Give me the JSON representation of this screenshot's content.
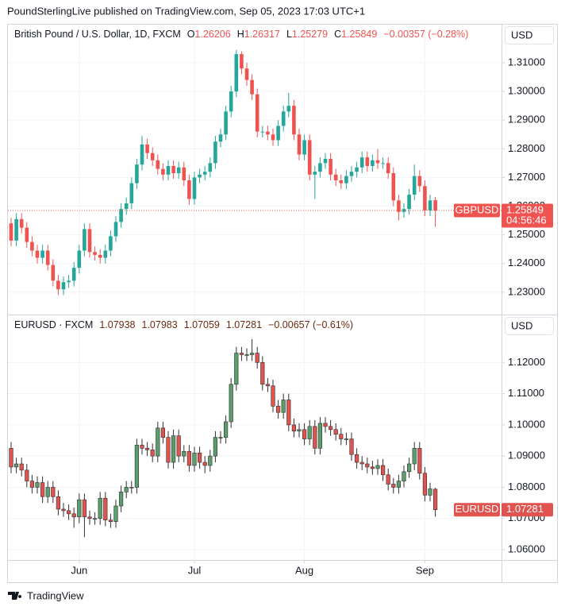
{
  "header": {
    "text": "PoundSterlingLive published on TradingView.com, Sep 05, 2023 17:03 UTC+1"
  },
  "footer": {
    "logo_text": "TradingView"
  },
  "chart_data": [
    {
      "type": "candlestick",
      "title": "British Pound / U.S. Dollar, 1D, FXCM",
      "ohlc_labels": [
        "O",
        "H",
        "L",
        "C"
      ],
      "change_label": "−0.00357 (−0.28%)",
      "currency": "USD",
      "symbol": "GBPUSD",
      "countdown": "04:56:46",
      "up_color": "#26a69a",
      "down_color": "#ef5350",
      "legend_color": "#ef5350",
      "last_price_line": true,
      "grid": true,
      "ylim": [
        1.2222,
        1.3233
      ],
      "yticks": [
        {
          "value": 1.31,
          "label": "1.31000"
        },
        {
          "value": 1.3,
          "label": "1.30000"
        },
        {
          "value": 1.29,
          "label": "1.29000"
        },
        {
          "value": 1.28,
          "label": "1.28000"
        },
        {
          "value": 1.27,
          "label": "1.27000"
        },
        {
          "value": 1.26,
          "label": "1.26000"
        },
        {
          "value": 1.25,
          "label": "1.25000"
        },
        {
          "value": 1.24,
          "label": "1.24000"
        },
        {
          "value": 1.23,
          "label": "1.23000"
        }
      ],
      "open": [
        1.254,
        1.248,
        1.2555,
        1.2525,
        1.2475,
        1.2445,
        1.242,
        1.2445,
        1.2395,
        1.234,
        1.231,
        1.2335,
        1.234,
        1.2385,
        1.2445,
        1.252,
        1.244,
        1.243,
        1.242,
        1.2445,
        1.2495,
        1.2545,
        1.259,
        1.261,
        1.268,
        1.2745,
        1.2815,
        1.2785,
        1.276,
        1.273,
        1.271,
        1.274,
        1.2715,
        1.2735,
        1.269,
        1.2625,
        1.27,
        1.271,
        1.272,
        1.275,
        1.2825,
        1.285,
        1.293,
        1.3,
        1.313,
        1.308,
        1.304,
        1.299,
        1.286,
        1.286,
        1.285,
        1.283,
        1.288,
        1.293,
        1.295,
        1.285,
        1.278,
        1.283,
        1.271,
        1.272,
        1.275,
        1.2765,
        1.271,
        1.269,
        1.268,
        1.2705,
        1.272,
        1.2735,
        1.277,
        1.274,
        1.276,
        1.275,
        1.275,
        1.2715,
        1.262,
        1.258,
        1.259,
        1.264,
        1.2705,
        1.267,
        1.2585,
        1.26206
      ],
      "high": [
        1.256,
        1.2575,
        1.2575,
        1.2545,
        1.2495,
        1.2465,
        1.2465,
        1.2465,
        1.2415,
        1.236,
        1.2355,
        1.236,
        1.2405,
        1.2465,
        1.254,
        1.254,
        1.246,
        1.245,
        1.2465,
        1.2515,
        1.2565,
        1.261,
        1.263,
        1.27,
        1.2765,
        1.2845,
        1.2835,
        1.2805,
        1.278,
        1.275,
        1.276,
        1.276,
        1.2755,
        1.2755,
        1.271,
        1.272,
        1.273,
        1.274,
        1.277,
        1.2845,
        1.287,
        1.295,
        1.302,
        1.3145,
        1.314,
        1.31,
        1.306,
        1.301,
        1.288,
        1.288,
        1.287,
        1.29,
        1.295,
        1.2995,
        1.297,
        1.287,
        1.285,
        1.285,
        1.274,
        1.277,
        1.2785,
        1.2785,
        1.273,
        1.271,
        1.2725,
        1.274,
        1.2755,
        1.279,
        1.279,
        1.278,
        1.28,
        1.277,
        1.277,
        1.2735,
        1.264,
        1.261,
        1.266,
        1.2745,
        1.2725,
        1.269,
        1.264,
        1.26317
      ],
      "low": [
        1.246,
        1.246,
        1.2505,
        1.2455,
        1.2425,
        1.24,
        1.24,
        1.2375,
        1.232,
        1.229,
        1.229,
        1.2315,
        1.232,
        1.2365,
        1.2425,
        1.242,
        1.241,
        1.24,
        1.24,
        1.2425,
        1.2475,
        1.2525,
        1.257,
        1.259,
        1.266,
        1.2725,
        1.2765,
        1.274,
        1.271,
        1.269,
        1.269,
        1.2695,
        1.2695,
        1.267,
        1.2605,
        1.2605,
        1.268,
        1.269,
        1.27,
        1.273,
        1.2805,
        1.283,
        1.291,
        1.298,
        1.306,
        1.302,
        1.297,
        1.284,
        1.284,
        1.283,
        1.281,
        1.281,
        1.286,
        1.291,
        1.283,
        1.276,
        1.276,
        1.269,
        1.2625,
        1.27,
        1.273,
        1.269,
        1.267,
        1.266,
        1.266,
        1.2685,
        1.27,
        1.2715,
        1.272,
        1.272,
        1.273,
        1.273,
        1.2695,
        1.26,
        1.255,
        1.256,
        1.257,
        1.262,
        1.265,
        1.2565,
        1.2565,
        1.25279
      ],
      "close": [
        1.248,
        1.2555,
        1.2525,
        1.2475,
        1.2445,
        1.242,
        1.2445,
        1.2395,
        1.234,
        1.231,
        1.2335,
        1.234,
        1.2385,
        1.2445,
        1.252,
        1.244,
        1.243,
        1.242,
        1.2445,
        1.2495,
        1.2545,
        1.259,
        1.261,
        1.268,
        1.2745,
        1.2815,
        1.2785,
        1.276,
        1.273,
        1.271,
        1.274,
        1.2715,
        1.2735,
        1.269,
        1.2625,
        1.27,
        1.271,
        1.272,
        1.275,
        1.2825,
        1.285,
        1.293,
        1.3,
        1.313,
        1.308,
        1.304,
        1.299,
        1.286,
        1.286,
        1.285,
        1.283,
        1.288,
        1.293,
        1.295,
        1.285,
        1.278,
        1.283,
        1.271,
        1.272,
        1.275,
        1.2765,
        1.271,
        1.269,
        1.268,
        1.2705,
        1.272,
        1.2735,
        1.277,
        1.274,
        1.276,
        1.275,
        1.275,
        1.2715,
        1.262,
        1.258,
        1.259,
        1.264,
        1.2705,
        1.267,
        1.2585,
        1.262,
        1.25849
      ]
    },
    {
      "type": "candlestick",
      "title": "EURUSD · FXCM",
      "change_label": "−0.00657 (−0.61%)",
      "currency": "USD",
      "symbol": "EURUSD",
      "up_color": "#5a9e6c",
      "down_color": "#e0534f",
      "wick_color": "#2f2f2f",
      "legend_color": "#6b2a10",
      "grid": true,
      "ylim": [
        1.0567,
        1.1351
      ],
      "yticks": [
        {
          "value": 1.12,
          "label": "1.12000"
        },
        {
          "value": 1.11,
          "label": "1.11000"
        },
        {
          "value": 1.1,
          "label": "1.10000"
        },
        {
          "value": 1.09,
          "label": "1.09000"
        },
        {
          "value": 1.08,
          "label": "1.08000"
        },
        {
          "value": 1.07,
          "label": "1.07000"
        },
        {
          "value": 1.06,
          "label": "1.06000"
        }
      ],
      "xticks": [
        {
          "value": 13,
          "label": "Jun"
        },
        {
          "value": 35,
          "label": "Jul"
        },
        {
          "value": 56,
          "label": "Aug"
        },
        {
          "value": 79,
          "label": "Sep"
        }
      ],
      "open": [
        1.0925,
        1.0865,
        1.0875,
        1.0855,
        1.082,
        1.08,
        1.0815,
        1.077,
        1.08,
        1.077,
        1.073,
        1.0725,
        1.0715,
        1.0705,
        1.076,
        1.0705,
        1.07,
        1.07,
        1.0765,
        1.0695,
        1.069,
        1.074,
        1.0785,
        1.08,
        1.08,
        1.0935,
        1.0925,
        1.092,
        1.09,
        1.099,
        1.096,
        1.088,
        1.0965,
        1.09,
        1.0915,
        1.087,
        1.091,
        1.088,
        1.087,
        1.09,
        1.096,
        1.096,
        1.101,
        1.113,
        1.123,
        1.1225,
        1.1225,
        1.123,
        1.12,
        1.113,
        1.1125,
        1.106,
        1.104,
        1.108,
        1.1,
        1.098,
        1.0985,
        1.0955,
        1.0995,
        1.0925,
        1.1005,
        1.0995,
        1.0985,
        1.097,
        1.0955,
        1.0955,
        1.0905,
        1.088,
        1.0875,
        1.0865,
        1.086,
        1.087,
        1.084,
        1.081,
        1.08,
        1.082,
        1.085,
        1.0875,
        1.0925,
        1.0845,
        1.0775,
        1.07938
      ],
      "high": [
        1.0945,
        1.0895,
        1.0895,
        1.0875,
        1.084,
        1.0835,
        1.0835,
        1.082,
        1.082,
        1.079,
        1.075,
        1.0745,
        1.0735,
        1.078,
        1.078,
        1.0725,
        1.072,
        1.0785,
        1.0785,
        1.0715,
        1.076,
        1.0805,
        1.082,
        1.082,
        1.0955,
        1.0955,
        1.0945,
        1.094,
        1.101,
        1.101,
        1.098,
        1.0985,
        1.0985,
        1.0935,
        1.0935,
        1.093,
        1.093,
        1.09,
        1.092,
        1.098,
        1.098,
        1.103,
        1.115,
        1.125,
        1.125,
        1.1245,
        1.1275,
        1.125,
        1.122,
        1.115,
        1.1145,
        1.108,
        1.11,
        1.11,
        1.102,
        1.1005,
        1.1005,
        1.1015,
        1.1015,
        1.1025,
        1.1025,
        1.1015,
        1.1005,
        1.099,
        1.0975,
        1.0975,
        1.0925,
        1.09,
        1.0895,
        1.0885,
        1.089,
        1.089,
        1.086,
        1.083,
        1.084,
        1.087,
        1.0895,
        1.0945,
        1.0945,
        1.0865,
        1.0815,
        1.07983
      ],
      "low": [
        1.0845,
        1.0845,
        1.0835,
        1.08,
        1.078,
        1.078,
        1.075,
        1.075,
        1.075,
        1.071,
        1.0705,
        1.0695,
        1.067,
        1.0685,
        1.064,
        1.068,
        1.068,
        1.068,
        1.0675,
        1.067,
        1.067,
        1.072,
        1.0765,
        1.078,
        1.078,
        1.0905,
        1.09,
        1.088,
        1.088,
        1.094,
        1.086,
        1.086,
        1.088,
        1.088,
        1.085,
        1.085,
        1.086,
        1.0845,
        1.085,
        1.088,
        1.094,
        1.094,
        1.099,
        1.111,
        1.1205,
        1.1205,
        1.1205,
        1.118,
        1.111,
        1.1105,
        1.104,
        1.102,
        1.102,
        1.098,
        1.096,
        1.096,
        1.0935,
        1.0935,
        1.0905,
        1.0905,
        1.0975,
        1.0965,
        1.095,
        1.0935,
        1.0935,
        1.0885,
        1.086,
        1.0855,
        1.0845,
        1.084,
        1.084,
        1.082,
        1.079,
        1.078,
        1.078,
        1.08,
        1.083,
        1.0855,
        1.0825,
        1.0755,
        1.0755,
        1.07059
      ],
      "close": [
        1.0865,
        1.0875,
        1.0855,
        1.082,
        1.08,
        1.0815,
        1.077,
        1.08,
        1.077,
        1.073,
        1.0725,
        1.0715,
        1.0705,
        1.076,
        1.0705,
        1.07,
        1.07,
        1.0765,
        1.0695,
        1.069,
        1.074,
        1.0785,
        1.08,
        1.08,
        1.0935,
        1.0925,
        1.092,
        1.09,
        1.099,
        1.096,
        1.088,
        1.0965,
        1.09,
        1.0915,
        1.087,
        1.091,
        1.088,
        1.087,
        1.09,
        1.096,
        1.096,
        1.101,
        1.113,
        1.123,
        1.1225,
        1.1225,
        1.123,
        1.12,
        1.113,
        1.1125,
        1.106,
        1.104,
        1.108,
        1.1,
        1.098,
        1.0985,
        1.0955,
        1.0995,
        1.0925,
        1.1005,
        1.0995,
        1.0985,
        1.097,
        1.0955,
        1.0955,
        1.0905,
        1.088,
        1.0875,
        1.0865,
        1.086,
        1.087,
        1.084,
        1.081,
        1.08,
        1.082,
        1.085,
        1.0875,
        1.0925,
        1.0845,
        1.0775,
        1.0795,
        1.07281
      ]
    }
  ]
}
